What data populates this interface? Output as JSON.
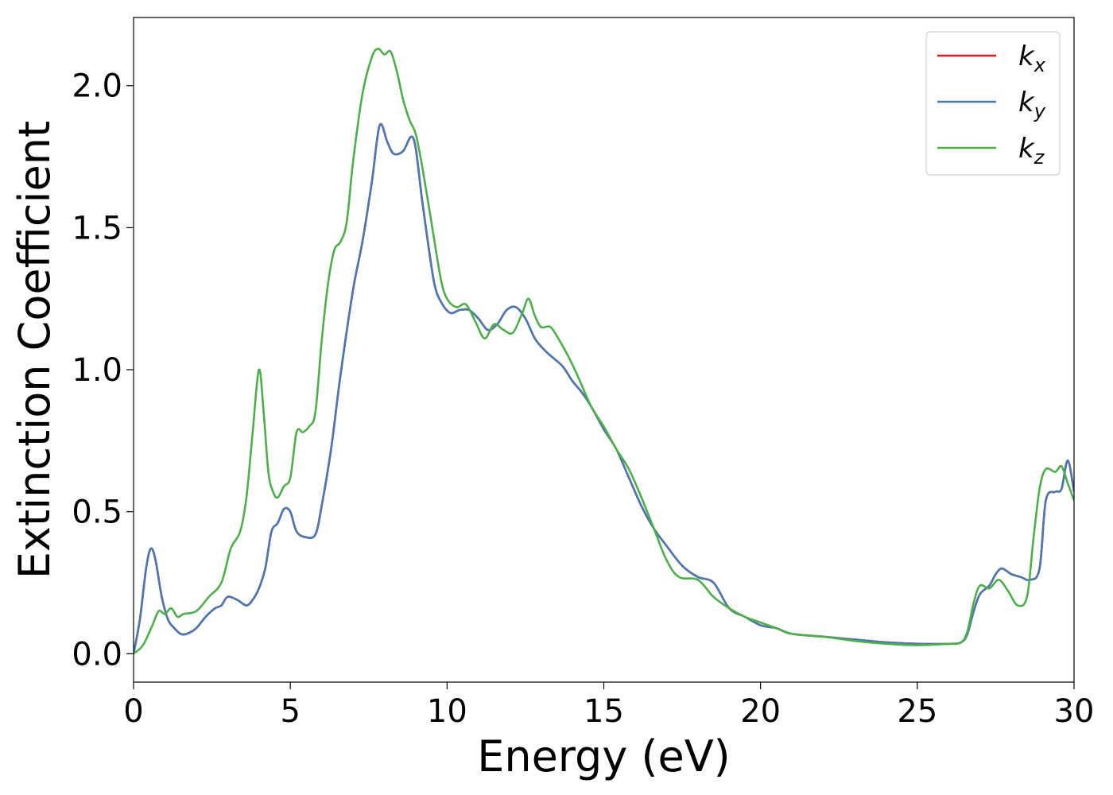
{
  "chart_data": {
    "type": "line",
    "title": "",
    "xlabel": "Energy (eV)",
    "ylabel": "Extinction Coefficient",
    "xlim": [
      0,
      30
    ],
    "ylim": [
      -0.1,
      2.24
    ],
    "xticks": [
      0,
      5,
      10,
      15,
      20,
      25,
      30
    ],
    "xtick_labels": [
      "0",
      "5",
      "10",
      "15",
      "20",
      "25",
      "30"
    ],
    "yticks": [
      0.0,
      0.5,
      1.0,
      1.5,
      2.0
    ],
    "ytick_labels": [
      "0.0",
      "0.5",
      "1.0",
      "1.5",
      "2.0"
    ],
    "grid": false,
    "legend_position": "top-right",
    "series": [
      {
        "name": "k_x",
        "legend_base": "k",
        "legend_sub": "x",
        "color": "#e41a1c",
        "x": [
          0,
          0.2,
          0.4,
          0.55,
          0.7,
          0.9,
          1.1,
          1.3,
          1.5,
          1.7,
          2.0,
          2.3,
          2.6,
          2.8,
          3.0,
          3.3,
          3.6,
          3.8,
          4.0,
          4.2,
          4.4,
          4.6,
          4.8,
          5.0,
          5.2,
          5.5,
          5.8,
          6.0,
          6.3,
          6.6,
          7.0,
          7.3,
          7.6,
          7.85,
          8.1,
          8.3,
          8.6,
          8.85,
          9.0,
          9.2,
          9.4,
          9.6,
          9.8,
          10.1,
          10.4,
          10.7,
          11.0,
          11.3,
          11.6,
          11.9,
          12.2,
          12.5,
          12.8,
          13.1,
          13.4,
          13.7,
          14.0,
          14.3,
          14.6,
          15.0,
          15.4,
          15.8,
          16.2,
          16.6,
          17.0,
          17.5,
          18.0,
          18.5,
          19.0,
          19.5,
          20.0,
          20.5,
          21.0,
          22.0,
          23.0,
          24.0,
          25.0,
          26.0,
          26.4,
          26.6,
          26.8,
          27.0,
          27.3,
          27.5,
          27.7,
          28.0,
          28.3,
          28.6,
          28.9,
          29.1,
          29.4,
          29.6,
          29.8,
          30.0
        ],
        "y": [
          0.0,
          0.12,
          0.3,
          0.37,
          0.33,
          0.2,
          0.12,
          0.09,
          0.07,
          0.07,
          0.09,
          0.13,
          0.16,
          0.17,
          0.2,
          0.19,
          0.17,
          0.19,
          0.23,
          0.3,
          0.43,
          0.46,
          0.51,
          0.5,
          0.43,
          0.41,
          0.42,
          0.52,
          0.72,
          0.98,
          1.28,
          1.45,
          1.66,
          1.86,
          1.8,
          1.76,
          1.77,
          1.82,
          1.78,
          1.6,
          1.44,
          1.3,
          1.24,
          1.2,
          1.21,
          1.21,
          1.18,
          1.14,
          1.16,
          1.21,
          1.22,
          1.18,
          1.11,
          1.07,
          1.04,
          1.01,
          0.96,
          0.92,
          0.87,
          0.79,
          0.72,
          0.62,
          0.52,
          0.44,
          0.38,
          0.31,
          0.27,
          0.25,
          0.16,
          0.13,
          0.1,
          0.09,
          0.07,
          0.06,
          0.05,
          0.04,
          0.035,
          0.035,
          0.04,
          0.07,
          0.15,
          0.21,
          0.24,
          0.28,
          0.3,
          0.28,
          0.27,
          0.26,
          0.3,
          0.54,
          0.57,
          0.58,
          0.68,
          0.57
        ]
      },
      {
        "name": "k_y",
        "legend_base": "k",
        "legend_sub": "y",
        "color": "#4a78b0",
        "x": [
          0,
          0.2,
          0.4,
          0.55,
          0.7,
          0.9,
          1.1,
          1.3,
          1.5,
          1.7,
          2.0,
          2.3,
          2.6,
          2.8,
          3.0,
          3.3,
          3.6,
          3.8,
          4.0,
          4.2,
          4.4,
          4.6,
          4.8,
          5.0,
          5.2,
          5.5,
          5.8,
          6.0,
          6.3,
          6.6,
          7.0,
          7.3,
          7.6,
          7.85,
          8.1,
          8.3,
          8.6,
          8.85,
          9.0,
          9.2,
          9.4,
          9.6,
          9.8,
          10.1,
          10.4,
          10.7,
          11.0,
          11.3,
          11.6,
          11.9,
          12.2,
          12.5,
          12.8,
          13.1,
          13.4,
          13.7,
          14.0,
          14.3,
          14.6,
          15.0,
          15.4,
          15.8,
          16.2,
          16.6,
          17.0,
          17.5,
          18.0,
          18.5,
          19.0,
          19.5,
          20.0,
          20.5,
          21.0,
          22.0,
          23.0,
          24.0,
          25.0,
          26.0,
          26.4,
          26.6,
          26.8,
          27.0,
          27.3,
          27.5,
          27.7,
          28.0,
          28.3,
          28.6,
          28.9,
          29.1,
          29.4,
          29.6,
          29.8,
          30.0
        ],
        "y": [
          0.0,
          0.12,
          0.3,
          0.37,
          0.33,
          0.2,
          0.12,
          0.09,
          0.07,
          0.07,
          0.09,
          0.13,
          0.16,
          0.17,
          0.2,
          0.19,
          0.17,
          0.19,
          0.23,
          0.3,
          0.43,
          0.46,
          0.51,
          0.5,
          0.43,
          0.41,
          0.42,
          0.52,
          0.72,
          0.98,
          1.28,
          1.45,
          1.66,
          1.86,
          1.8,
          1.76,
          1.77,
          1.82,
          1.78,
          1.6,
          1.44,
          1.3,
          1.24,
          1.2,
          1.21,
          1.21,
          1.18,
          1.14,
          1.16,
          1.21,
          1.22,
          1.18,
          1.11,
          1.07,
          1.04,
          1.01,
          0.96,
          0.92,
          0.87,
          0.79,
          0.72,
          0.62,
          0.52,
          0.44,
          0.38,
          0.31,
          0.27,
          0.25,
          0.16,
          0.13,
          0.1,
          0.09,
          0.07,
          0.06,
          0.05,
          0.04,
          0.035,
          0.035,
          0.04,
          0.07,
          0.15,
          0.21,
          0.24,
          0.28,
          0.3,
          0.28,
          0.27,
          0.26,
          0.3,
          0.54,
          0.57,
          0.58,
          0.68,
          0.57
        ]
      },
      {
        "name": "k_z",
        "legend_base": "k",
        "legend_sub": "z",
        "color": "#4daf4a",
        "x": [
          0,
          0.3,
          0.6,
          0.8,
          1.0,
          1.2,
          1.4,
          1.6,
          2.0,
          2.4,
          2.8,
          3.1,
          3.4,
          3.6,
          3.8,
          4.0,
          4.15,
          4.3,
          4.45,
          4.6,
          4.8,
          5.0,
          5.2,
          5.4,
          5.6,
          5.8,
          6.0,
          6.2,
          6.4,
          6.6,
          6.8,
          7.0,
          7.3,
          7.6,
          7.8,
          8.0,
          8.2,
          8.4,
          8.6,
          8.8,
          9.0,
          9.2,
          9.5,
          9.8,
          10.0,
          10.3,
          10.6,
          10.9,
          11.2,
          11.5,
          11.8,
          12.1,
          12.4,
          12.6,
          12.8,
          13.0,
          13.3,
          13.6,
          13.9,
          14.2,
          14.6,
          15.0,
          15.4,
          15.8,
          16.2,
          16.6,
          17.0,
          17.4,
          18.0,
          18.5,
          19.0,
          19.5,
          20.0,
          20.5,
          21.0,
          22.0,
          23.0,
          24.0,
          25.0,
          26.0,
          26.4,
          26.6,
          26.8,
          27.0,
          27.3,
          27.6,
          27.9,
          28.2,
          28.5,
          28.7,
          28.9,
          29.1,
          29.4,
          29.6,
          29.8,
          30.0
        ],
        "y": [
          0.0,
          0.03,
          0.1,
          0.15,
          0.14,
          0.16,
          0.13,
          0.14,
          0.15,
          0.2,
          0.25,
          0.37,
          0.43,
          0.55,
          0.78,
          1.0,
          0.85,
          0.64,
          0.57,
          0.55,
          0.59,
          0.62,
          0.78,
          0.78,
          0.8,
          0.85,
          1.1,
          1.3,
          1.42,
          1.45,
          1.52,
          1.73,
          1.97,
          2.1,
          2.13,
          2.11,
          2.12,
          2.05,
          1.95,
          1.88,
          1.83,
          1.72,
          1.52,
          1.32,
          1.25,
          1.22,
          1.23,
          1.17,
          1.11,
          1.16,
          1.14,
          1.13,
          1.2,
          1.25,
          1.19,
          1.15,
          1.15,
          1.1,
          1.04,
          0.97,
          0.87,
          0.8,
          0.72,
          0.65,
          0.55,
          0.44,
          0.33,
          0.27,
          0.26,
          0.2,
          0.16,
          0.13,
          0.11,
          0.09,
          0.07,
          0.06,
          0.045,
          0.035,
          0.03,
          0.035,
          0.04,
          0.08,
          0.18,
          0.24,
          0.23,
          0.26,
          0.22,
          0.17,
          0.2,
          0.4,
          0.58,
          0.65,
          0.64,
          0.66,
          0.6,
          0.54
        ]
      }
    ]
  }
}
